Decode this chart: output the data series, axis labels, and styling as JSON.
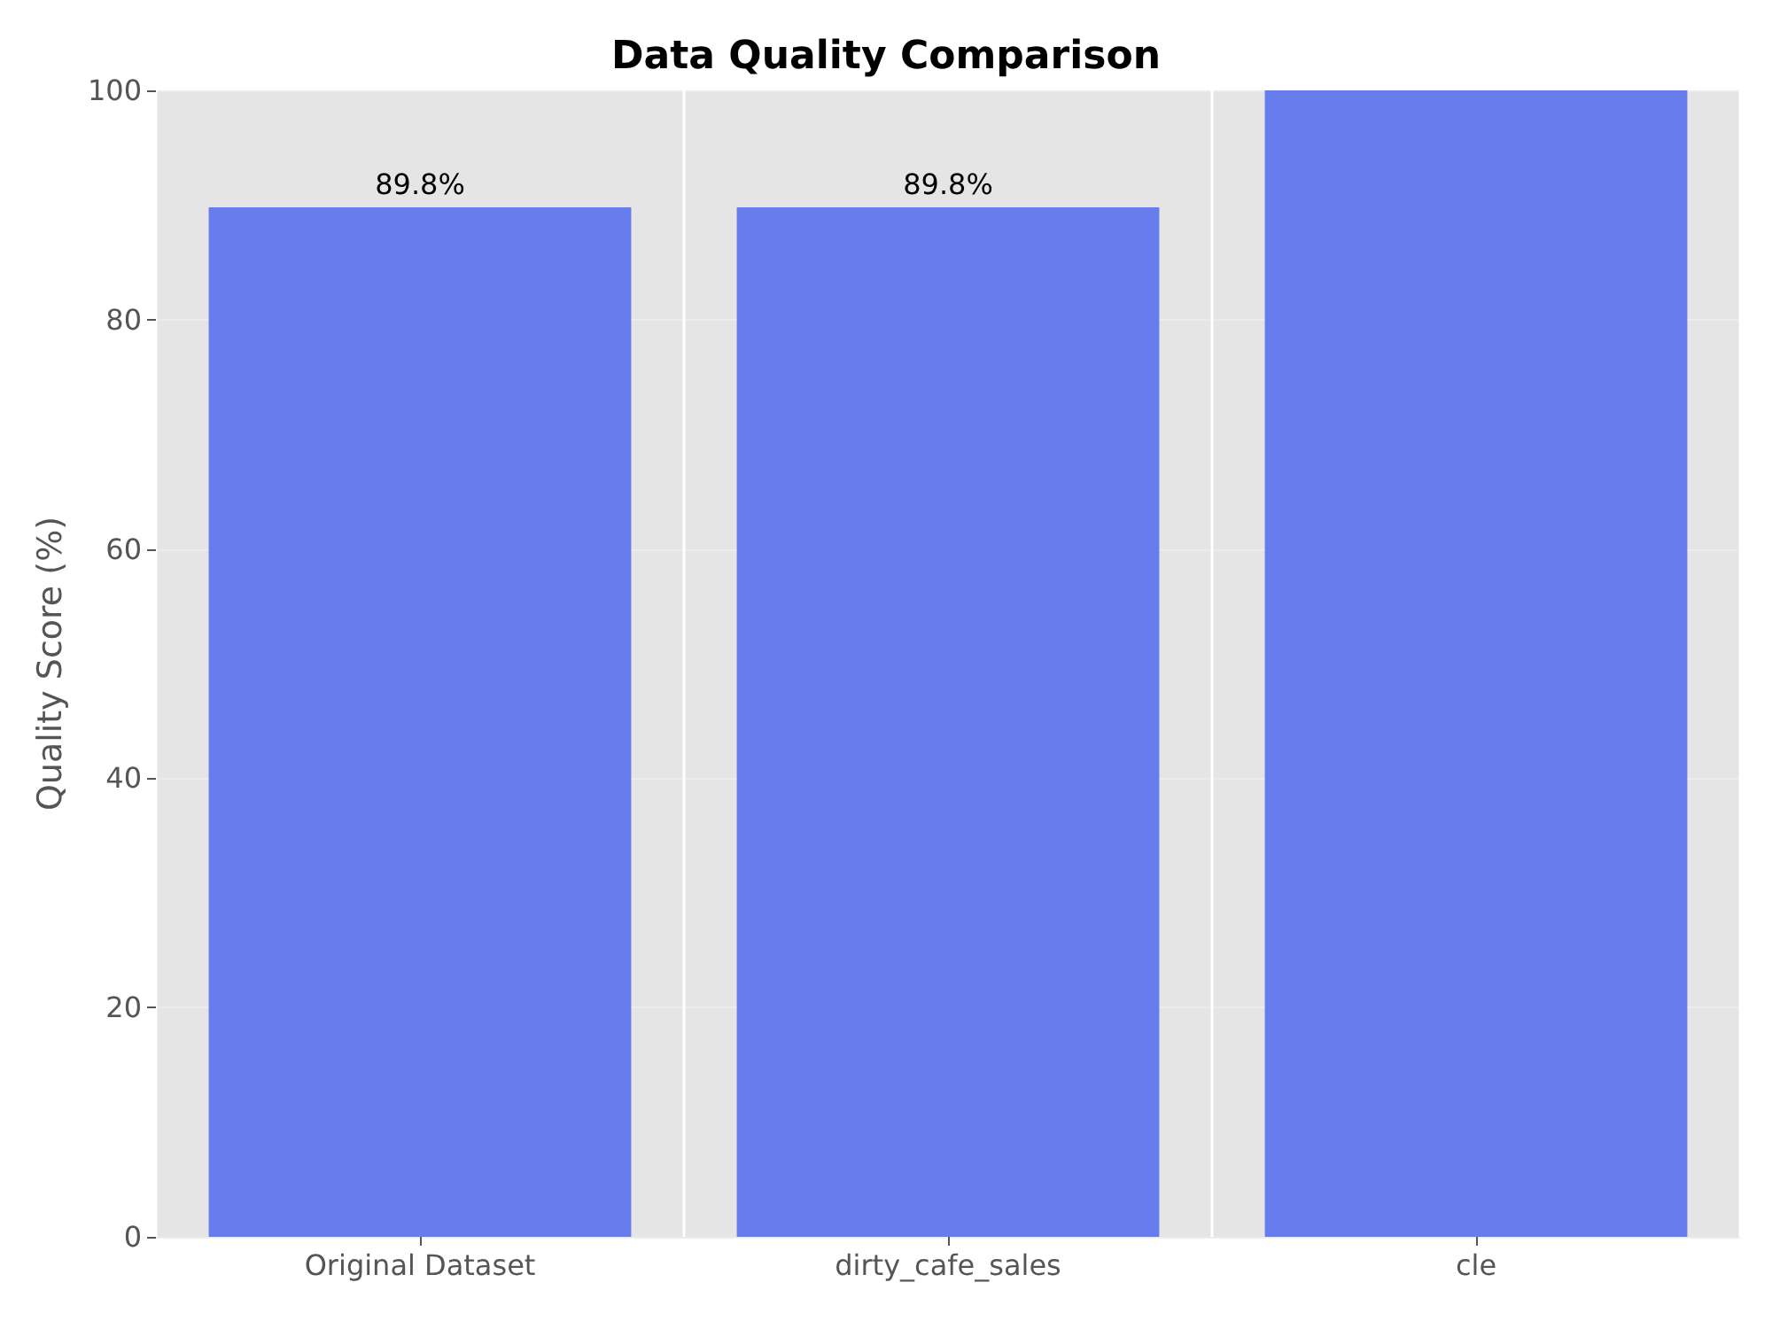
{
  "chart_data": {
    "type": "bar",
    "title": "Data Quality Comparison",
    "ylabel": "Quality Score (%)",
    "categories": [
      "Original Dataset",
      "dirty_cafe_sales",
      "cle"
    ],
    "values": [
      89.8,
      89.8,
      100
    ],
    "color": "#677ded",
    "value_labels": [
      "89.8%",
      "89.8%",
      null
    ],
    "ylim": [
      0,
      100
    ],
    "yticks": [
      0,
      20,
      40,
      60,
      80,
      100
    ],
    "grid": true
  }
}
